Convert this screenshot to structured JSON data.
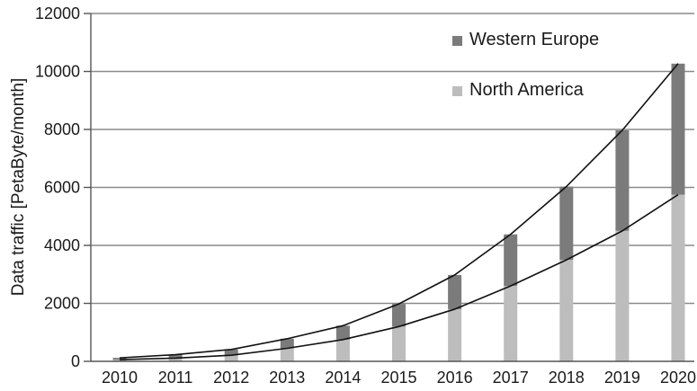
{
  "chart_data": {
    "type": "bar",
    "stacked": true,
    "categories": [
      "2010",
      "2011",
      "2012",
      "2013",
      "2014",
      "2015",
      "2016",
      "2017",
      "2018",
      "2019",
      "2020"
    ],
    "series": [
      {
        "name": "North America",
        "color": "#bdbdbd",
        "values": [
          60,
          110,
          210,
          450,
          750,
          1200,
          1800,
          2600,
          3500,
          4500,
          5750
        ]
      },
      {
        "name": "Western Europe",
        "color": "#7b7b7b",
        "values": [
          60,
          120,
          200,
          330,
          480,
          780,
          1180,
          1780,
          2530,
          3470,
          4520
        ]
      }
    ],
    "totals_line": true,
    "xlabel": "",
    "ylabel": "Data traffic [PetaByte/month]",
    "ylim": [
      0,
      12000
    ],
    "yticks": [
      "0",
      "2000",
      "4000",
      "6000",
      "8000",
      "10000",
      "12000"
    ],
    "grid": "horizontal",
    "legend_position": "top-right"
  }
}
